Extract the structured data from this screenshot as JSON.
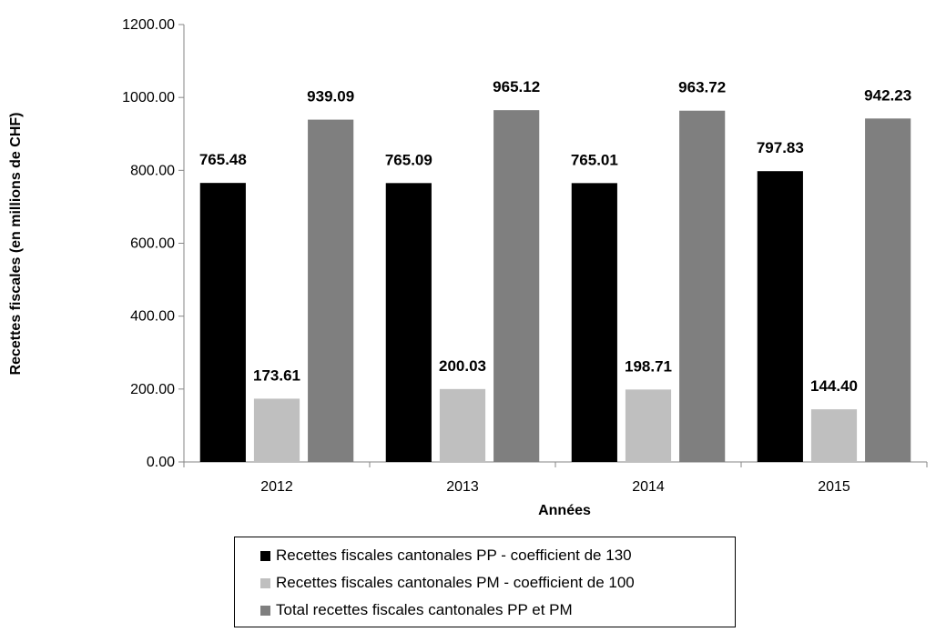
{
  "chart_data": {
    "type": "bar",
    "categories": [
      "2012",
      "2013",
      "2014",
      "2015"
    ],
    "series": [
      {
        "name": "Recettes fiscales cantonales PP - coefficient de 130",
        "color": "#000000",
        "values": [
          765.48,
          765.09,
          765.01,
          797.83
        ],
        "labels": [
          "765.48",
          "765.09",
          "765.01",
          "797.83"
        ]
      },
      {
        "name": "Recettes fiscales cantonales PM - coefficient de 100",
        "color": "#bfbfbf",
        "values": [
          173.61,
          200.03,
          198.71,
          144.4
        ],
        "labels": [
          "173.61",
          "200.03",
          "198.71",
          "144.40"
        ]
      },
      {
        "name": "Total recettes fiscales cantonales PP et PM",
        "color": "#7f7f7f",
        "values": [
          939.09,
          965.12,
          963.72,
          942.23
        ],
        "labels": [
          "939.09",
          "965.12",
          "963.72",
          "942.23"
        ]
      }
    ],
    "title": "",
    "xlabel": "Années",
    "ylabel": "Recettes fiscales (en millions de CHF)",
    "ylim": [
      0,
      1200
    ],
    "yticks": [
      "0.00",
      "200.00",
      "400.00",
      "600.00",
      "800.00",
      "1000.00",
      "1200.00"
    ],
    "grid": false,
    "legend_position": "bottom"
  }
}
